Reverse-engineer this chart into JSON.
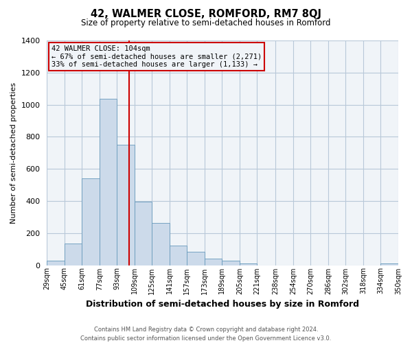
{
  "title_main": "42, WALMER CLOSE, ROMFORD, RM7 8QJ",
  "title_sub": "Size of property relative to semi-detached houses in Romford",
  "xlabel": "Distribution of semi-detached houses by size in Romford",
  "ylabel": "Number of semi-detached properties",
  "footer_line1": "Contains HM Land Registry data © Crown copyright and database right 2024.",
  "footer_line2": "Contains public sector information licensed under the Open Government Licence v3.0.",
  "bin_labels": [
    "29sqm",
    "45sqm",
    "61sqm",
    "77sqm",
    "93sqm",
    "109sqm",
    "125sqm",
    "141sqm",
    "157sqm",
    "173sqm",
    "189sqm",
    "205sqm",
    "221sqm",
    "238sqm",
    "254sqm",
    "270sqm",
    "286sqm",
    "302sqm",
    "318sqm",
    "334sqm",
    "350sqm"
  ],
  "bar_values": [
    28,
    135,
    540,
    1035,
    750,
    395,
    265,
    120,
    85,
    40,
    28,
    10,
    0,
    0,
    0,
    0,
    0,
    0,
    0,
    10,
    0
  ],
  "bin_edges": [
    29,
    45,
    61,
    77,
    93,
    109,
    125,
    141,
    157,
    173,
    189,
    205,
    221,
    238,
    254,
    270,
    286,
    302,
    318,
    334,
    350
  ],
  "bin_width": 16,
  "bar_color": "#ccdaea",
  "bar_edgecolor": "#6699bb",
  "vline_x": 104,
  "vline_color": "#cc0000",
  "annotation_title": "42 WALMER CLOSE: 104sqm",
  "annotation_line1": "← 67% of semi-detached houses are smaller (2,271)",
  "annotation_line2": "33% of semi-detached houses are larger (1,133) →",
  "annotation_box_edgecolor": "#cc0000",
  "ylim": [
    0,
    1400
  ],
  "yticks": [
    0,
    200,
    400,
    600,
    800,
    1000,
    1200,
    1400
  ],
  "grid_color": "#b8c8d8",
  "bg_color": "#ffffff",
  "plot_bg_color": "#f0f4f8"
}
